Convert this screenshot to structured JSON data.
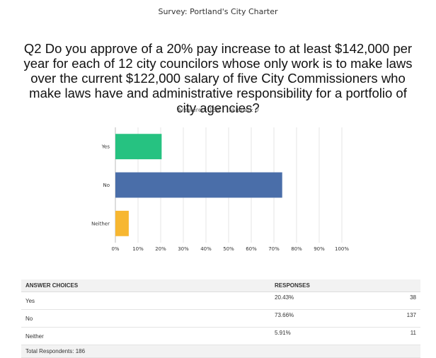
{
  "survey_title": "Survey: Portland's City Charter",
  "question": "Q2 Do you approve of a 20% pay increase to at least $142,000 per year for each of 12 city councilors whose only work is to make laws over the current $122,000 salary of five City Commissioners who make laws have and administrative responsibility for a portfolio of city agencies?",
  "stats": {
    "answered": "Answered: 186",
    "skipped": "Skipped: 0"
  },
  "chart_data": {
    "type": "bar",
    "orientation": "horizontal",
    "categories": [
      "Yes",
      "No",
      "Neither"
    ],
    "values": [
      20.43,
      73.66,
      5.91
    ],
    "colors": [
      "#26c281",
      "#4a6ea9",
      "#f7b731"
    ],
    "xlim": [
      0,
      100
    ],
    "xticks": [
      "0%",
      "10%",
      "20%",
      "30%",
      "40%",
      "50%",
      "60%",
      "70%",
      "80%",
      "90%",
      "100%"
    ],
    "grid": true
  },
  "table": {
    "headers": [
      "ANSWER CHOICES",
      "RESPONSES",
      ""
    ],
    "rows": [
      {
        "choice": "Yes",
        "percent": "20.43%",
        "count": "38"
      },
      {
        "choice": "No",
        "percent": "73.66%",
        "count": "137"
      },
      {
        "choice": "Neither",
        "percent": "5.91%",
        "count": "11"
      }
    ],
    "total": "Total Respondents: 186"
  }
}
